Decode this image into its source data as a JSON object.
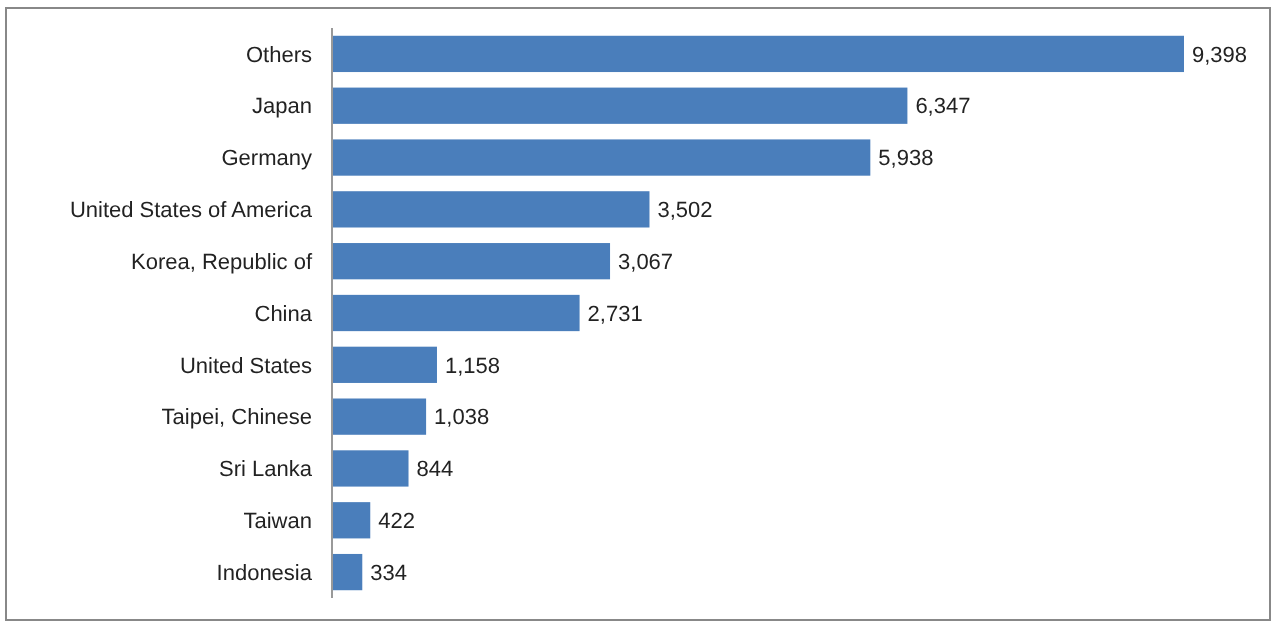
{
  "chart_data": {
    "type": "bar",
    "orientation": "horizontal",
    "categories": [
      "Others",
      "Japan",
      "Germany",
      "United States of America",
      "Korea, Republic of",
      "China",
      "United States",
      "Taipei, Chinese",
      "Sri Lanka",
      "Taiwan",
      "Indonesia"
    ],
    "values": [
      9398,
      6347,
      5938,
      3502,
      3067,
      2731,
      1158,
      1038,
      844,
      422,
      334
    ],
    "value_labels": [
      "9,398",
      "6,347",
      "5,938",
      "3,502",
      "3,067",
      "2,731",
      "1,158",
      "1,038",
      "844",
      "422",
      "334"
    ],
    "color": "#4a7ebb"
  }
}
